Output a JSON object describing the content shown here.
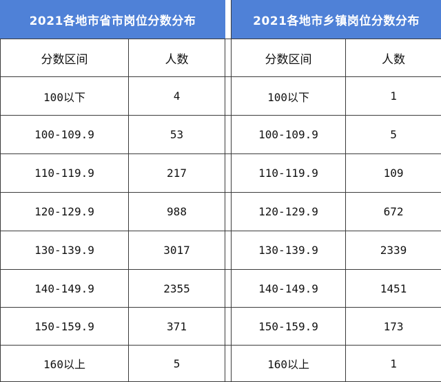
{
  "tables": {
    "left": {
      "title": "2021各地市省市岗位分数分布",
      "header": [
        "分数区间",
        "人数"
      ],
      "rows": [
        [
          "100以下",
          "4"
        ],
        [
          "100-109.9",
          "53"
        ],
        [
          "110-119.9",
          "217"
        ],
        [
          "120-129.9",
          "988"
        ],
        [
          "130-139.9",
          "3017"
        ],
        [
          "140-149.9",
          "2355"
        ],
        [
          "150-159.9",
          "371"
        ],
        [
          "160以上",
          "5"
        ]
      ]
    },
    "right": {
      "title": "2021各地市乡镇岗位分数分布",
      "header": [
        "分数区间",
        "人数"
      ],
      "rows": [
        [
          "100以下",
          "1"
        ],
        [
          "100-109.9",
          "5"
        ],
        [
          "110-119.9",
          "109"
        ],
        [
          "120-129.9",
          "672"
        ],
        [
          "130-139.9",
          "2339"
        ],
        [
          "140-149.9",
          "1451"
        ],
        [
          "150-159.9",
          "173"
        ],
        [
          "160以上",
          "1"
        ]
      ]
    }
  },
  "colors": {
    "header_bg": "#4f81d7",
    "header_text": "#ffffff",
    "border": "#3a3a3a"
  }
}
